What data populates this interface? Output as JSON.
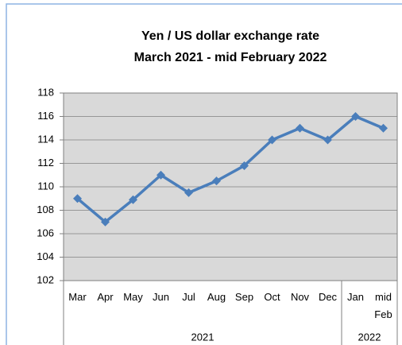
{
  "chart_data": {
    "type": "line",
    "title": [
      "Yen / US dollar exchange rate",
      "March 2021  - mid February 2022"
    ],
    "categories": [
      "Mar",
      "Apr",
      "May",
      "Jun",
      "Jul",
      "Aug",
      "Sep",
      "Oct",
      "Nov",
      "Dec",
      "Jan",
      "mid Feb"
    ],
    "category_groups": [
      {
        "label": "2021",
        "count": 10
      },
      {
        "label": "2022",
        "count": 2
      }
    ],
    "series": [
      {
        "name": "Yen / US dollar",
        "color": "#4a7ebb",
        "values": [
          109,
          107,
          108.9,
          111,
          109.5,
          110.5,
          111.8,
          114,
          115,
          114,
          116,
          115
        ]
      }
    ],
    "ylim": [
      102,
      118
    ],
    "yticks": [
      102,
      104,
      106,
      108,
      110,
      112,
      114,
      116,
      118
    ],
    "grid": true
  }
}
